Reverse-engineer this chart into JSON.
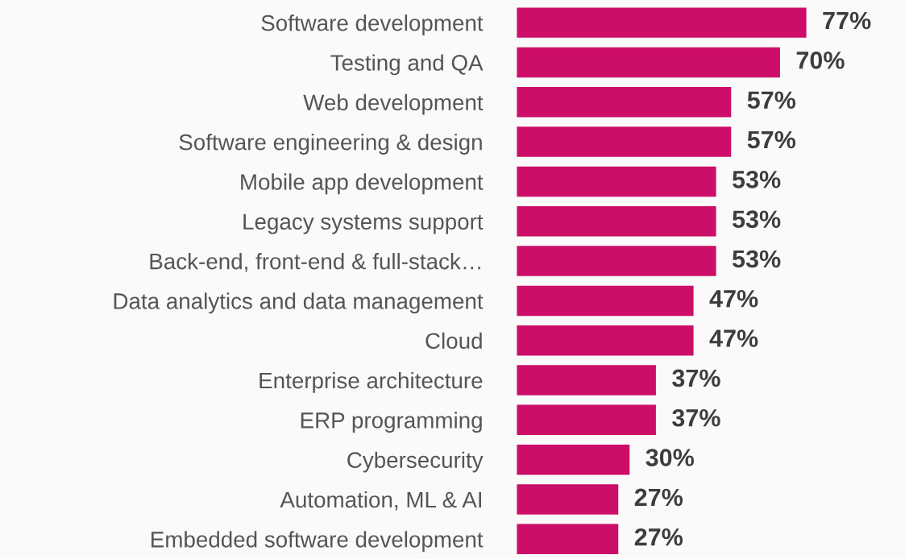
{
  "chart_data": {
    "type": "bar",
    "orientation": "horizontal",
    "categories": [
      "Software development",
      "Testing and QA",
      "Web development",
      "Software engineering & design",
      "Mobile app development",
      "Legacy systems support",
      "Back-end, front-end & full-stack…",
      "Data analytics and data management",
      "Cloud",
      "Enterprise architecture",
      "ERP programming",
      "Cybersecurity",
      "Automation, ML & AI",
      "Embedded software development"
    ],
    "values": [
      77,
      70,
      57,
      57,
      53,
      53,
      53,
      47,
      47,
      37,
      37,
      30,
      27,
      27
    ],
    "value_labels": [
      "77%",
      "70%",
      "57%",
      "57%",
      "53%",
      "53%",
      "53%",
      "47%",
      "47%",
      "37%",
      "37%",
      "30%",
      "27%",
      "27%"
    ],
    "color": "#cc0e68",
    "grid": false,
    "legend": false,
    "tick_labels": "y"
  }
}
